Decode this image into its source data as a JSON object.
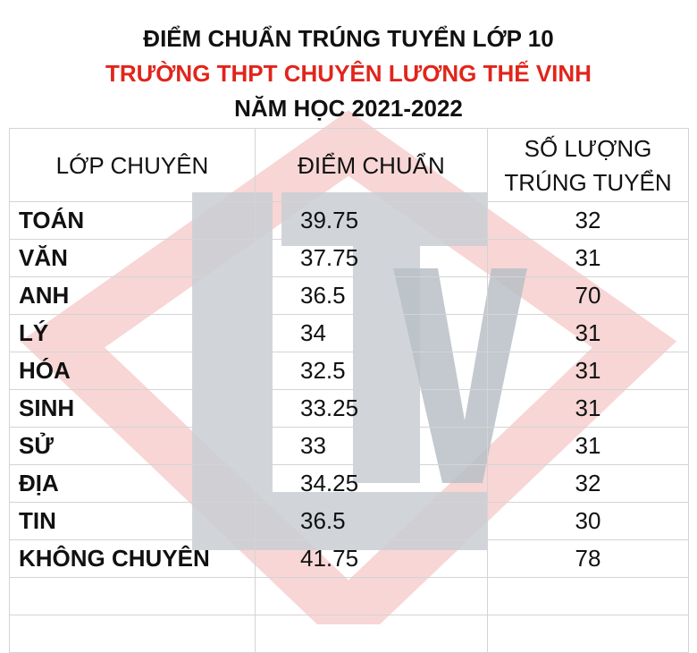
{
  "header": {
    "title": "ĐIỂM CHUẨN TRÚNG TUYỂN LỚP 10",
    "school": "TRƯỜNG THPT CHUYÊN LƯƠNG THẾ VINH",
    "year": "NĂM HỌC 2021-2022"
  },
  "table": {
    "columns": [
      [
        "LỚP CHUYÊN"
      ],
      [
        "ĐIỂM CHUẨN"
      ],
      [
        "SỐ LƯỢNG",
        "TRÚNG TUYỂN"
      ]
    ],
    "rows": [
      [
        "TOÁN",
        "39.75",
        "32"
      ],
      [
        "VĂN",
        "37.75",
        "31"
      ],
      [
        "ANH",
        "36.5",
        "70"
      ],
      [
        "LÝ",
        "34",
        "31"
      ],
      [
        "HÓA",
        "32.5",
        "31"
      ],
      [
        "SINH",
        "33.25",
        "31"
      ],
      [
        "SỬ",
        "33",
        "31"
      ],
      [
        "ĐỊA",
        "34.25",
        "32"
      ],
      [
        "TIN",
        "36.5",
        "30"
      ],
      [
        "KHÔNG CHUYÊN",
        "41.75",
        "78"
      ]
    ]
  }
}
